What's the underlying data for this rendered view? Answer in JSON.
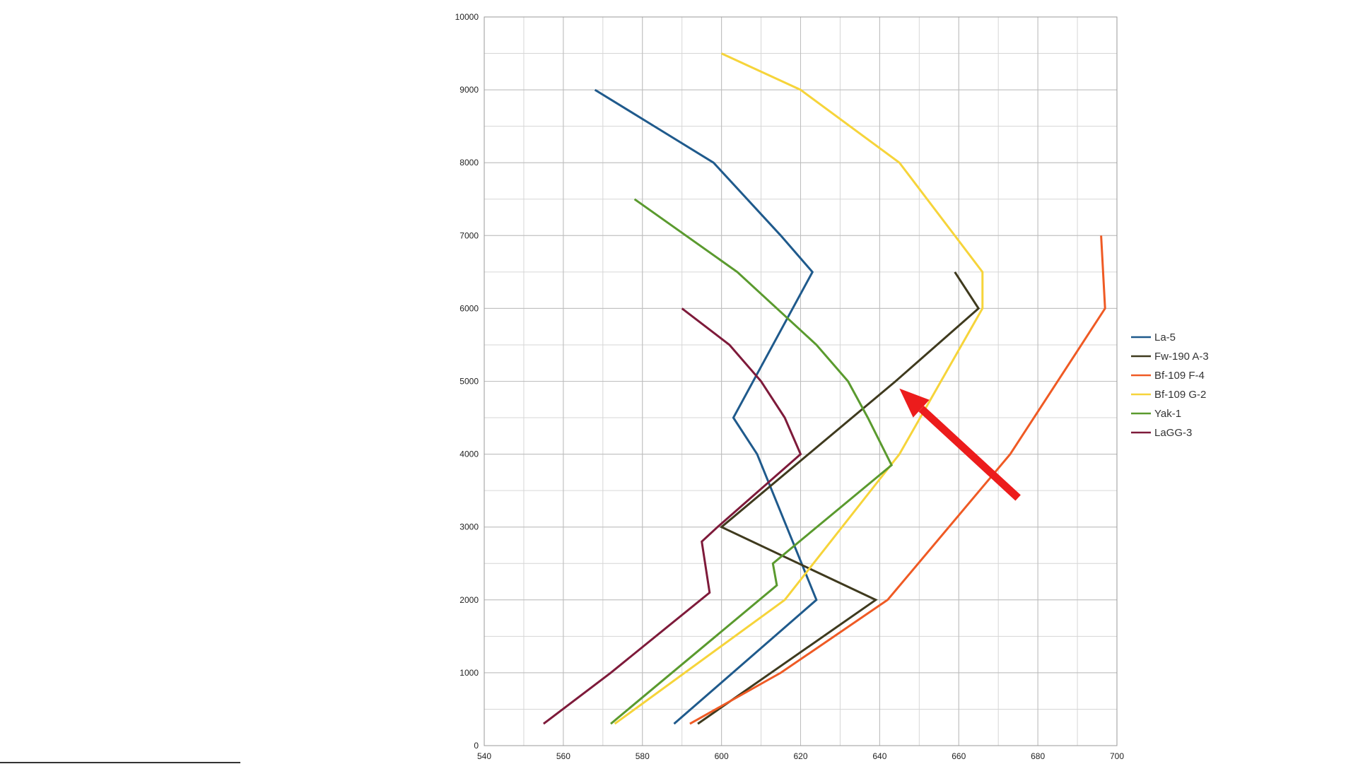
{
  "chart_data": {
    "type": "line",
    "title": "",
    "xlabel": "",
    "ylabel": "",
    "xlim": [
      540,
      700
    ],
    "ylim": [
      0,
      10000
    ],
    "x_ticks": [
      540,
      560,
      580,
      600,
      620,
      640,
      660,
      680,
      700
    ],
    "y_ticks": [
      0,
      1000,
      2000,
      3000,
      4000,
      5000,
      6000,
      7000,
      8000,
      9000,
      10000
    ],
    "x_minor_step": 10,
    "y_minor_step": 500,
    "grid": true,
    "legend_position": "right",
    "series": [
      {
        "name": "La-5",
        "color": "#1f5a8c",
        "points": [
          [
            588,
            300
          ],
          [
            624,
            2000
          ],
          [
            609,
            4000
          ],
          [
            603,
            4500
          ],
          [
            623,
            6500
          ],
          [
            615,
            7000
          ],
          [
            598,
            8000
          ],
          [
            583,
            8500
          ],
          [
            568,
            9000
          ]
        ]
      },
      {
        "name": "Fw-190 A-3",
        "color": "#3f3a1e",
        "points": [
          [
            594,
            300
          ],
          [
            639,
            2000
          ],
          [
            600,
            3000
          ],
          [
            644,
            5000
          ],
          [
            665,
            6000
          ],
          [
            659,
            6500
          ]
        ]
      },
      {
        "name": "Bf-109 F-4",
        "color": "#ef5a24",
        "points": [
          [
            592,
            300
          ],
          [
            615,
            1000
          ],
          [
            642,
            2000
          ],
          [
            673,
            4000
          ],
          [
            697,
            6000
          ],
          [
            696,
            7000
          ]
        ]
      },
      {
        "name": "Bf-109 G-2",
        "color": "#f6d43a",
        "points": [
          [
            573,
            300
          ],
          [
            616,
            2000
          ],
          [
            645,
            4000
          ],
          [
            666,
            6000
          ],
          [
            666,
            6500
          ],
          [
            645,
            8000
          ],
          [
            620,
            9000
          ],
          [
            600,
            9500
          ]
        ]
      },
      {
        "name": "Yak-1",
        "color": "#5a9a2e",
        "points": [
          [
            572,
            300
          ],
          [
            614,
            2200
          ],
          [
            613,
            2500
          ],
          [
            643,
            3850
          ],
          [
            637,
            4500
          ],
          [
            632,
            5000
          ],
          [
            624,
            5500
          ],
          [
            604,
            6500
          ],
          [
            578,
            7500
          ]
        ]
      },
      {
        "name": "LaGG-3",
        "color": "#7e1a3a",
        "points": [
          [
            555,
            300
          ],
          [
            572,
            1000
          ],
          [
            597,
            2100
          ],
          [
            595,
            2800
          ],
          [
            599,
            3000
          ],
          [
            620,
            4000
          ],
          [
            616,
            4500
          ],
          [
            610,
            5000
          ],
          [
            602,
            5500
          ],
          [
            590,
            6000
          ]
        ]
      }
    ],
    "annotation": {
      "type": "arrow",
      "color": "#ec1c1c",
      "from": [
        675,
        3400
      ],
      "to": [
        645,
        4900
      ]
    }
  }
}
